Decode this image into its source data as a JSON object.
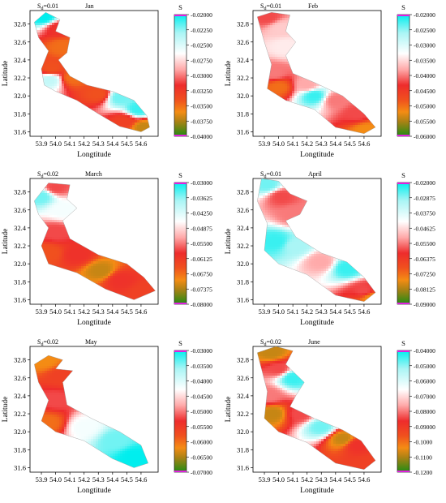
{
  "chart_data": [
    {
      "type": "heatmap",
      "month": "Jan",
      "sd_label": "Sd=0.01",
      "xlabel": "Longtitude",
      "ylabel": "Latitude",
      "xticks": [
        "53.9",
        "54.0",
        "54.1",
        "54.2",
        "54.3",
        "54.4",
        "54.5",
        "54.6"
      ],
      "yticks": [
        "32.8",
        "32.6",
        "32.4",
        "32.2",
        "32.0",
        "31.8",
        "31.6"
      ],
      "xlim": [
        53.82,
        54.72
      ],
      "ylim": [
        31.55,
        32.95
      ],
      "colorbar": {
        "title": "S",
        "ticks": [
          "-0.02000",
          "-0.02250",
          "-0.02500",
          "-0.02750",
          "-0.03000",
          "-0.03250",
          "-0.03500",
          "-0.03750",
          "-0.04000"
        ]
      },
      "points": [
        {
          "lon": 53.92,
          "lat": 32.88,
          "v": 0.0
        },
        {
          "lon": 54.02,
          "lat": 32.75,
          "v": 0.6
        },
        {
          "lon": 54.05,
          "lat": 32.55,
          "v": 0.75
        },
        {
          "lon": 53.97,
          "lat": 32.3,
          "v": 0.7
        },
        {
          "lon": 53.96,
          "lat": 32.18,
          "v": 0.2
        },
        {
          "lon": 54.12,
          "lat": 32.2,
          "v": 0.75
        },
        {
          "lon": 54.3,
          "lat": 32.02,
          "v": 0.7
        },
        {
          "lon": 54.45,
          "lat": 31.98,
          "v": 0.1
        },
        {
          "lon": 54.58,
          "lat": 31.85,
          "v": 0.05
        },
        {
          "lon": 54.48,
          "lat": 31.72,
          "v": 0.65
        },
        {
          "lon": 54.62,
          "lat": 31.65,
          "v": 0.85
        }
      ]
    },
    {
      "type": "heatmap",
      "month": "Feb",
      "sd_label": "Sd=0.01",
      "xlabel": "Longtitude",
      "ylabel": "Latitude",
      "xticks": [
        "53.9",
        "54.0",
        "54.1",
        "54.2",
        "54.3",
        "54.4",
        "54.5",
        "54.6"
      ],
      "yticks": [
        "32.8",
        "32.6",
        "32.4",
        "32.2",
        "32.0",
        "31.8",
        "31.6"
      ],
      "xlim": [
        53.82,
        54.72
      ],
      "ylim": [
        31.55,
        32.95
      ],
      "colorbar": {
        "title": "S",
        "ticks": [
          "-0.02000",
          "-0.02500",
          "-0.03000",
          "-0.03500",
          "-0.04000",
          "-0.04500",
          "-0.05000",
          "-0.05500",
          "-0.06000"
        ]
      },
      "points": [
        {
          "lon": 53.92,
          "lat": 32.88,
          "v": 0.55
        },
        {
          "lon": 54.02,
          "lat": 32.75,
          "v": 0.4
        },
        {
          "lon": 54.05,
          "lat": 32.55,
          "v": 0.35
        },
        {
          "lon": 53.97,
          "lat": 32.25,
          "v": 0.5
        },
        {
          "lon": 54.0,
          "lat": 32.1,
          "v": 0.75
        },
        {
          "lon": 54.2,
          "lat": 32.12,
          "v": 0.45
        },
        {
          "lon": 54.25,
          "lat": 32.0,
          "v": 0.05
        },
        {
          "lon": 54.4,
          "lat": 31.95,
          "v": 0.5
        },
        {
          "lon": 54.55,
          "lat": 31.8,
          "v": 0.55
        },
        {
          "lon": 54.62,
          "lat": 31.62,
          "v": 0.8
        }
      ]
    },
    {
      "type": "heatmap",
      "month": "March",
      "sd_label": "Sd=0.02",
      "xlabel": "Longtitude",
      "ylabel": "Latitude",
      "xticks": [
        "53.9",
        "54.0",
        "54.1",
        "54.2",
        "54.3",
        "54.4",
        "54.5",
        "54.6"
      ],
      "yticks": [
        "32.8",
        "32.6",
        "32.4",
        "32.2",
        "32.0",
        "31.8",
        "31.6"
      ],
      "xlim": [
        53.82,
        54.72
      ],
      "ylim": [
        31.55,
        32.95
      ],
      "colorbar": {
        "title": "S",
        "ticks": [
          "-0.03000",
          "-0.03625",
          "-0.04250",
          "-0.04875",
          "-0.05500",
          "-0.06125",
          "-0.06750",
          "-0.07375",
          "-0.08000"
        ]
      },
      "points": [
        {
          "lon": 53.9,
          "lat": 32.75,
          "v": 0.1
        },
        {
          "lon": 54.0,
          "lat": 32.85,
          "v": 0.55
        },
        {
          "lon": 54.05,
          "lat": 32.6,
          "v": 0.3
        },
        {
          "lon": 54.0,
          "lat": 32.35,
          "v": 0.55
        },
        {
          "lon": 53.95,
          "lat": 32.12,
          "v": 0.7
        },
        {
          "lon": 54.15,
          "lat": 32.1,
          "v": 0.6
        },
        {
          "lon": 54.32,
          "lat": 31.92,
          "v": 0.85
        },
        {
          "lon": 54.45,
          "lat": 31.82,
          "v": 0.6
        },
        {
          "lon": 54.62,
          "lat": 31.68,
          "v": 0.65
        }
      ]
    },
    {
      "type": "heatmap",
      "month": "April",
      "sd_label": "Sd=0.01",
      "xlabel": "Longtitude",
      "ylabel": "Latitude",
      "xticks": [
        "53.9",
        "54.0",
        "54.1",
        "54.2",
        "54.3",
        "54.4",
        "54.5",
        "54.6"
      ],
      "yticks": [
        "32.8",
        "32.6",
        "32.4",
        "32.2",
        "32.0",
        "31.8",
        "31.6"
      ],
      "xlim": [
        53.82,
        54.72
      ],
      "ylim": [
        31.55,
        32.95
      ],
      "colorbar": {
        "title": "S",
        "ticks": [
          "-0.02000",
          "-0.02875",
          "-0.03750",
          "-0.04625",
          "-0.05500",
          "-0.06375",
          "-0.07250",
          "-0.08125",
          "-0.09000"
        ]
      },
      "points": [
        {
          "lon": 53.92,
          "lat": 32.88,
          "v": 0.1
        },
        {
          "lon": 54.02,
          "lat": 32.75,
          "v": 0.55
        },
        {
          "lon": 54.1,
          "lat": 32.55,
          "v": 0.5
        },
        {
          "lon": 53.98,
          "lat": 32.25,
          "v": 0.05
        },
        {
          "lon": 54.12,
          "lat": 32.2,
          "v": 0.15
        },
        {
          "lon": 54.3,
          "lat": 32.02,
          "v": 0.45
        },
        {
          "lon": 54.48,
          "lat": 31.95,
          "v": 0.05
        },
        {
          "lon": 54.6,
          "lat": 31.7,
          "v": 0.55
        },
        {
          "lon": 54.65,
          "lat": 31.62,
          "v": 0.8
        }
      ]
    },
    {
      "type": "heatmap",
      "month": "May",
      "sd_label": "Sd=0.02",
      "xlabel": "Longtitude",
      "ylabel": "Latitude",
      "xticks": [
        "53.9",
        "54.0",
        "54.1",
        "54.2",
        "54.3",
        "54.4",
        "54.5",
        "54.6"
      ],
      "yticks": [
        "32.8",
        "32.6",
        "32.4",
        "32.2",
        "32.0",
        "31.8",
        "31.6"
      ],
      "xlim": [
        53.82,
        54.72
      ],
      "ylim": [
        31.55,
        32.95
      ],
      "colorbar": {
        "title": "S",
        "ticks": [
          "-0.03000",
          "-0.03500",
          "-0.04000",
          "-0.04500",
          "-0.05000",
          "-0.05500",
          "-0.06000",
          "-0.06500",
          "-0.07000"
        ]
      },
      "points": [
        {
          "lon": 53.92,
          "lat": 32.8,
          "v": 0.8
        },
        {
          "lon": 54.05,
          "lat": 32.62,
          "v": 0.65
        },
        {
          "lon": 54.0,
          "lat": 32.35,
          "v": 0.55
        },
        {
          "lon": 53.95,
          "lat": 32.1,
          "v": 0.75
        },
        {
          "lon": 54.2,
          "lat": 32.05,
          "v": 0.3
        },
        {
          "lon": 54.42,
          "lat": 31.9,
          "v": 0.1
        },
        {
          "lon": 54.55,
          "lat": 31.72,
          "v": 0.0
        }
      ]
    },
    {
      "type": "heatmap",
      "month": "June",
      "sd_label": "Sd=0.02",
      "xlabel": "Longtitude",
      "ylabel": "Latitude",
      "xticks": [
        "53.9",
        "54.0",
        "54.1",
        "54.2",
        "54.3",
        "54.4",
        "54.5",
        "54.6"
      ],
      "yticks": [
        "32.8",
        "32.6",
        "32.4",
        "32.2",
        "32.0",
        "31.8",
        "31.6"
      ],
      "xlim": [
        53.82,
        54.72
      ],
      "ylim": [
        31.55,
        32.95
      ],
      "colorbar": {
        "title": "S",
        "ticks": [
          "-0.04000",
          "-0.05000",
          "-0.06000",
          "-0.07000",
          "-0.08000",
          "-0.09000",
          "-0.1000",
          "-0.1100",
          "-0.1200"
        ]
      },
      "points": [
        {
          "lon": 53.95,
          "lat": 32.88,
          "v": 0.85
        },
        {
          "lon": 54.0,
          "lat": 32.7,
          "v": 0.55
        },
        {
          "lon": 54.1,
          "lat": 32.6,
          "v": 0.05
        },
        {
          "lon": 53.93,
          "lat": 32.4,
          "v": 0.5
        },
        {
          "lon": 53.96,
          "lat": 32.2,
          "v": 0.85
        },
        {
          "lon": 54.15,
          "lat": 32.2,
          "v": 0.55
        },
        {
          "lon": 54.3,
          "lat": 32.05,
          "v": 0.1
        },
        {
          "lon": 54.45,
          "lat": 31.92,
          "v": 0.85
        },
        {
          "lon": 54.55,
          "lat": 31.85,
          "v": 0.6
        },
        {
          "lon": 54.65,
          "lat": 31.65,
          "v": 0.65
        }
      ]
    }
  ]
}
